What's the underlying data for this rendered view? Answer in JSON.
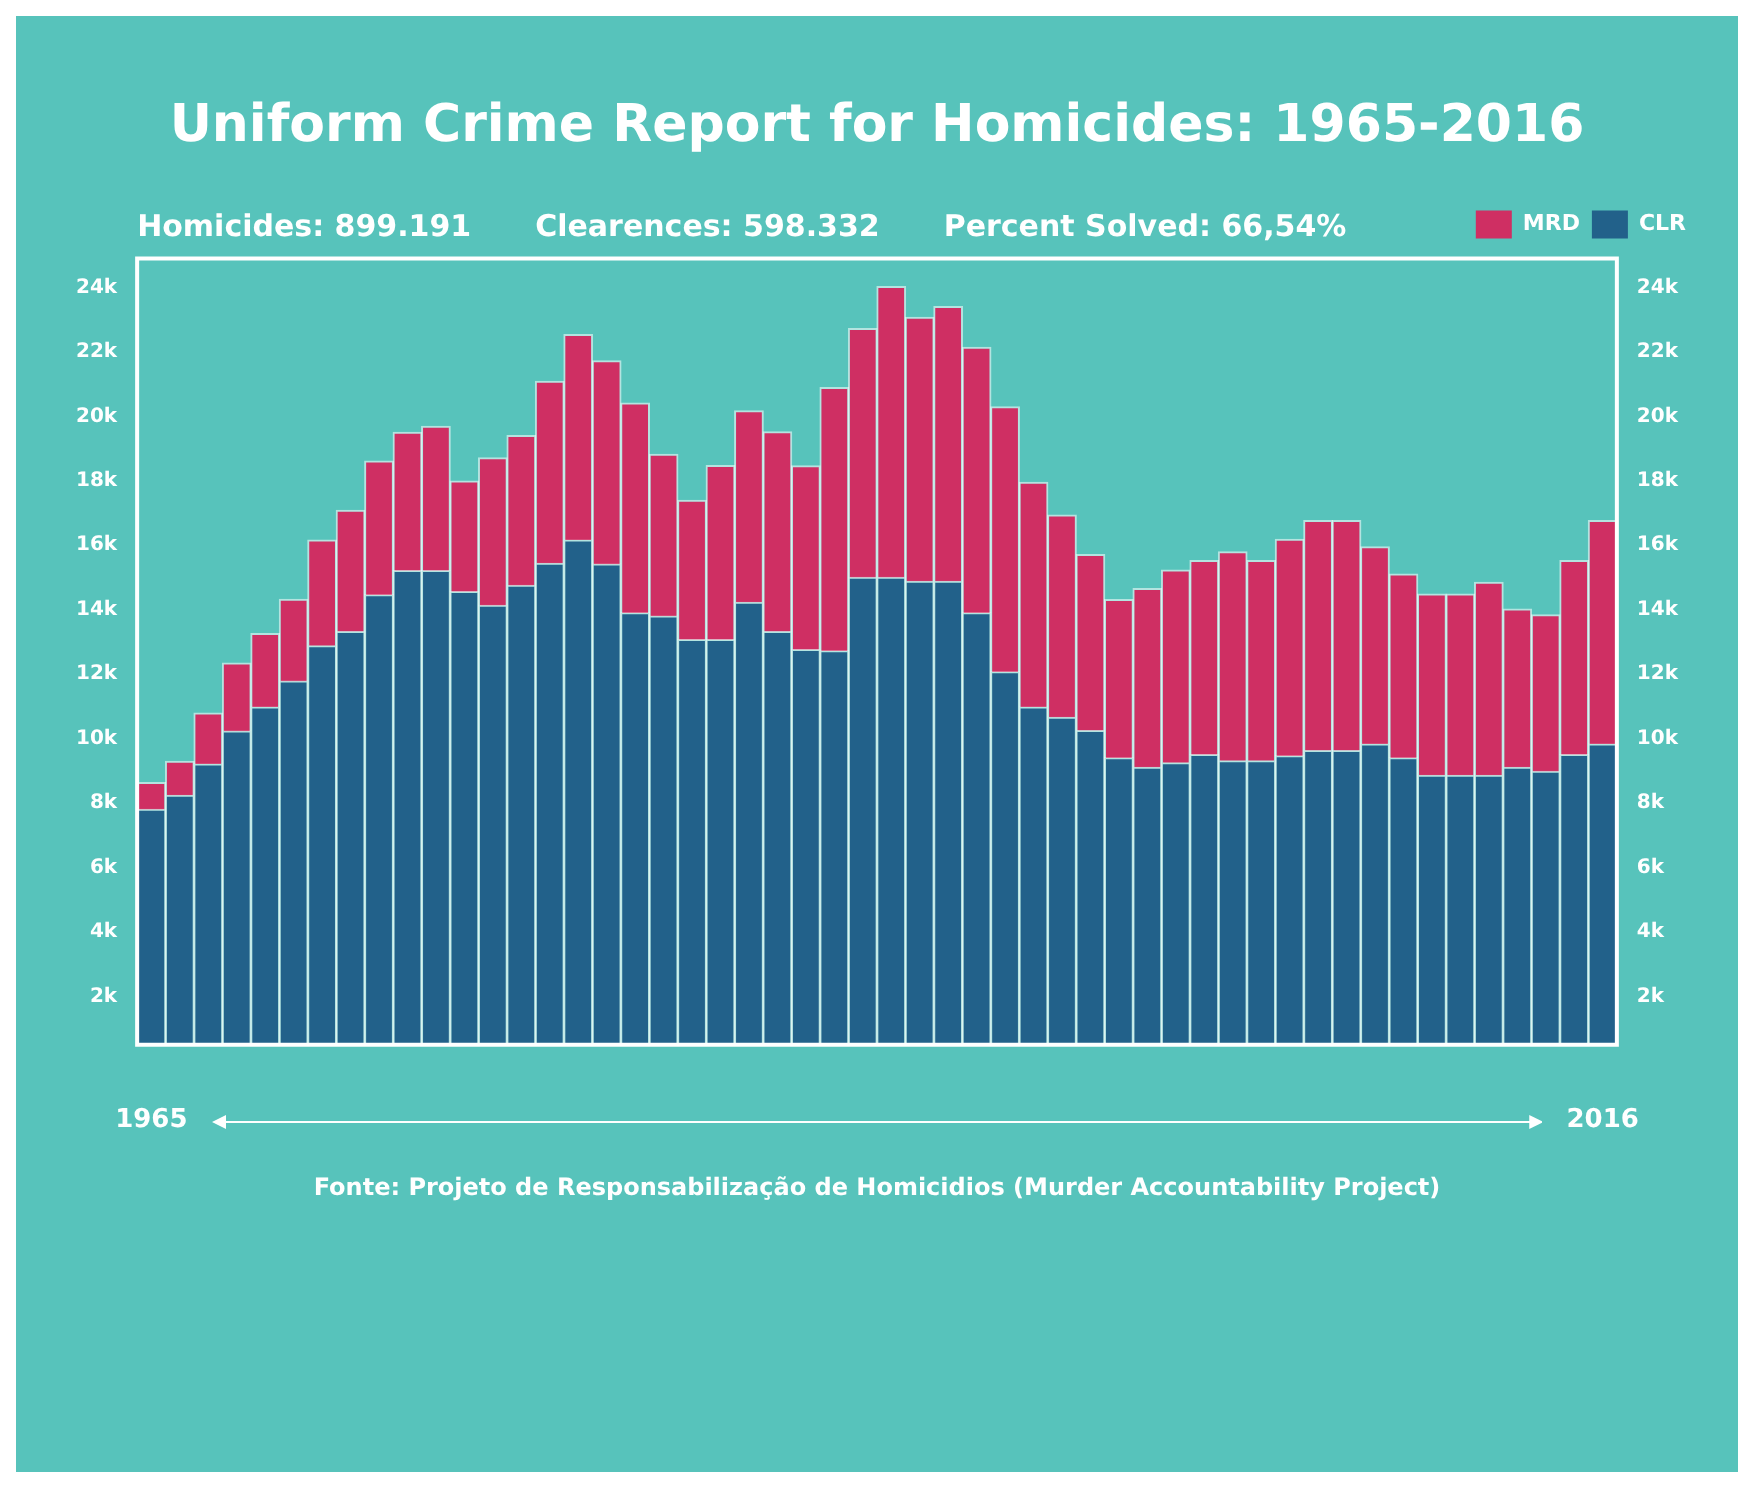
{
  "chart_data": {
    "type": "bar",
    "title": "Uniform Crime Report for Homicides: 1965-2016",
    "annotations": [
      "Homicides: 899.191",
      "Clearences: 598.332",
      "Percent Solved: 66,54%",
      "Fonte: Projeto de Responsabilização de Homicidios (Murder Accountability Project)"
    ],
    "categories": [
      "1965",
      null,
      null,
      null,
      null,
      null,
      null,
      null,
      null,
      null,
      null,
      null,
      null,
      null,
      null,
      null,
      null,
      null,
      null,
      null,
      null,
      null,
      null,
      null,
      null,
      null,
      null,
      null,
      null,
      null,
      null,
      null,
      null,
      null,
      null,
      null,
      null,
      null,
      null,
      null,
      null,
      null,
      null,
      null,
      null,
      null,
      null,
      null,
      null,
      null,
      null,
      "2016"
    ],
    "stacked": true,
    "series": [
      {
        "name": "CLR",
        "color": "#22618a",
        "values": [
          7800,
          8240,
          9210,
          10230,
          10980,
          11780,
          12880,
          13320,
          14460,
          15210,
          15210,
          14560,
          14130,
          14750,
          15440,
          16160,
          15410,
          13900,
          13800,
          13070,
          13070,
          14230,
          13320,
          12760,
          12720,
          15000,
          15000,
          14880,
          14880,
          13900,
          12070,
          10980,
          10660,
          10250,
          9400,
          9110,
          9250,
          9500,
          9310,
          9310,
          9460,
          9630,
          9630,
          9830,
          9400,
          8860,
          8860,
          8860,
          9110,
          8980,
          9500,
          9830
        ]
      },
      {
        "name": "MRD",
        "color": "#cf2f63",
        "values": [
          830,
          1050,
          1580,
          2110,
          2280,
          2540,
          3280,
          3760,
          4150,
          4290,
          4480,
          3430,
          4580,
          4650,
          5640,
          6370,
          6310,
          6510,
          5020,
          4320,
          5400,
          5940,
          6200,
          5700,
          8170,
          7720,
          9020,
          8190,
          8520,
          8240,
          8220,
          6970,
          6270,
          5460,
          4910,
          5540,
          5980,
          6020,
          6480,
          6210,
          6720,
          7130,
          7130,
          6120,
          5700,
          5620,
          5620,
          5990,
          4910,
          4860,
          6020,
          6930
        ]
      }
    ],
    "ylim": [
      500,
      24900
    ],
    "yticks": [
      {
        "value": 2000,
        "label": "2k"
      },
      {
        "value": 4000,
        "label": "4k"
      },
      {
        "value": 6000,
        "label": "6k"
      },
      {
        "value": 8000,
        "label": "8k"
      },
      {
        "value": 10000,
        "label": "10k"
      },
      {
        "value": 12000,
        "label": "12k"
      },
      {
        "value": 14000,
        "label": "14k"
      },
      {
        "value": 16000,
        "label": "16k"
      },
      {
        "value": 18000,
        "label": "18k"
      },
      {
        "value": 20000,
        "label": "20k"
      },
      {
        "value": 22000,
        "label": "22k"
      },
      {
        "value": 24000,
        "label": "24k"
      }
    ],
    "y2lim": [
      500,
      24900
    ],
    "y2ticks": [
      {
        "value": 2000,
        "label": "2k"
      },
      {
        "value": 4000,
        "label": "4k"
      },
      {
        "value": 6000,
        "label": "6k"
      },
      {
        "value": 8000,
        "label": "8k"
      },
      {
        "value": 10000,
        "label": "10k"
      },
      {
        "value": 12000,
        "label": "12k"
      },
      {
        "value": 14000,
        "label": "14k"
      },
      {
        "value": 16000,
        "label": "16k"
      },
      {
        "value": 18000,
        "label": "18k"
      },
      {
        "value": 20000,
        "label": "20k"
      },
      {
        "value": 22000,
        "label": "22k"
      },
      {
        "value": 24000,
        "label": "24k"
      }
    ],
    "grid": false,
    "legend": "top right"
  }
}
